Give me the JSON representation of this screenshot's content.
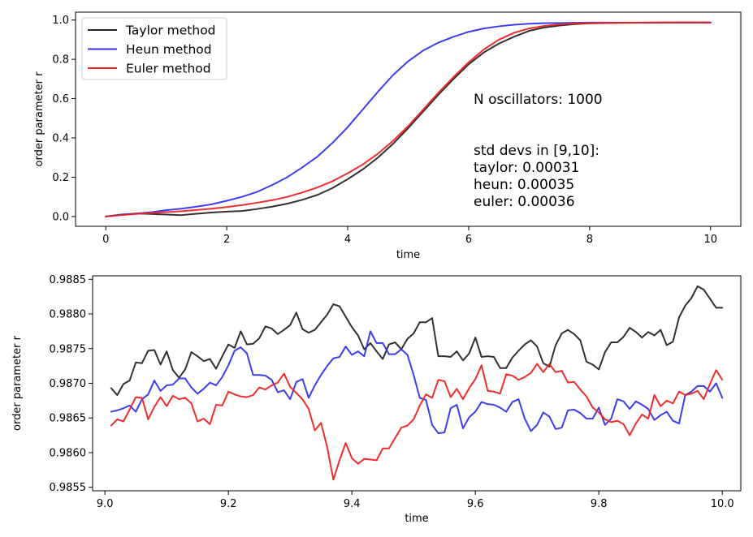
{
  "chart_data": [
    {
      "type": "line",
      "xlabel": "time",
      "ylabel": "order parameter r",
      "xlim": [
        -0.5,
        10.5
      ],
      "ylim": [
        -0.05,
        1.04
      ],
      "xticks": [
        0,
        2,
        4,
        6,
        8,
        10
      ],
      "xtick_labels": [
        "0",
        "2",
        "4",
        "6",
        "8",
        "10"
      ],
      "yticks": [
        0.0,
        0.2,
        0.4,
        0.6,
        0.8,
        1.0
      ],
      "ytick_labels": [
        "0.0",
        "0.2",
        "0.4",
        "0.6",
        "0.8",
        "1.0"
      ],
      "legend": {
        "position": "upper left"
      },
      "annotation": {
        "title": "N oscillators: 1000",
        "std_lines": [
          "std devs in [9,10]:",
          "taylor: 0.00031",
          "heun: 0.00035",
          "euler: 0.00036"
        ]
      },
      "series": [
        {
          "name": "Taylor method",
          "color": "#262626",
          "x": [
            0,
            0.25,
            0.5,
            0.75,
            1.0,
            1.25,
            1.5,
            1.75,
            2.0,
            2.25,
            2.5,
            2.75,
            3.0,
            3.25,
            3.5,
            3.75,
            4.0,
            4.25,
            4.5,
            4.75,
            5.0,
            5.25,
            5.5,
            5.75,
            6.0,
            6.25,
            6.5,
            6.75,
            7.0,
            7.25,
            7.5,
            7.75,
            8.0,
            8.5,
            9.0,
            9.5,
            10.0
          ],
          "y": [
            0.0,
            0.008,
            0.015,
            0.013,
            0.01,
            0.007,
            0.014,
            0.02,
            0.025,
            0.028,
            0.038,
            0.05,
            0.065,
            0.085,
            0.11,
            0.145,
            0.19,
            0.24,
            0.3,
            0.37,
            0.45,
            0.535,
            0.62,
            0.7,
            0.775,
            0.835,
            0.88,
            0.915,
            0.945,
            0.962,
            0.972,
            0.979,
            0.983,
            0.986,
            0.987,
            0.988,
            0.988
          ]
        },
        {
          "name": "Heun method",
          "color": "#3333ee",
          "x": [
            0,
            0.25,
            0.5,
            0.75,
            1.0,
            1.25,
            1.5,
            1.75,
            2.0,
            2.25,
            2.5,
            2.75,
            3.0,
            3.25,
            3.5,
            3.75,
            4.0,
            4.25,
            4.5,
            4.75,
            5.0,
            5.25,
            5.5,
            5.75,
            6.0,
            6.25,
            6.5,
            6.75,
            7.0,
            7.25,
            7.5,
            7.75,
            8.0,
            8.5,
            9.0,
            9.5,
            10.0
          ],
          "y": [
            0.0,
            0.01,
            0.015,
            0.022,
            0.032,
            0.04,
            0.05,
            0.062,
            0.08,
            0.1,
            0.125,
            0.16,
            0.2,
            0.25,
            0.305,
            0.375,
            0.455,
            0.545,
            0.635,
            0.72,
            0.79,
            0.845,
            0.885,
            0.915,
            0.94,
            0.957,
            0.968,
            0.976,
            0.981,
            0.984,
            0.985,
            0.986,
            0.987,
            0.987,
            0.987,
            0.987,
            0.987
          ]
        },
        {
          "name": "Euler method",
          "color": "#ee2222",
          "x": [
            0,
            0.25,
            0.5,
            0.75,
            1.0,
            1.25,
            1.5,
            1.75,
            2.0,
            2.25,
            2.5,
            2.75,
            3.0,
            3.25,
            3.5,
            3.75,
            4.0,
            4.25,
            4.5,
            4.75,
            5.0,
            5.25,
            5.5,
            5.75,
            6.0,
            6.25,
            6.5,
            6.75,
            7.0,
            7.25,
            7.5,
            7.75,
            8.0,
            8.5,
            9.0,
            9.5,
            10.0
          ],
          "y": [
            0.0,
            0.007,
            0.013,
            0.018,
            0.022,
            0.027,
            0.033,
            0.04,
            0.048,
            0.058,
            0.07,
            0.083,
            0.1,
            0.122,
            0.148,
            0.18,
            0.22,
            0.265,
            0.32,
            0.385,
            0.46,
            0.545,
            0.63,
            0.71,
            0.785,
            0.85,
            0.9,
            0.935,
            0.957,
            0.97,
            0.978,
            0.982,
            0.985,
            0.986,
            0.987,
            0.987,
            0.987
          ]
        }
      ]
    },
    {
      "type": "line",
      "xlabel": "time",
      "ylabel": "order parameter r",
      "xlim": [
        8.98,
        10.03
      ],
      "ylim": [
        0.98545,
        0.98855
      ],
      "xticks": [
        9.0,
        9.2,
        9.4,
        9.6,
        9.8,
        10.0
      ],
      "xtick_labels": [
        "9.0",
        "9.2",
        "9.4",
        "9.6",
        "9.8",
        "10.0"
      ],
      "yticks": [
        0.9855,
        0.986,
        0.9865,
        0.987,
        0.9875,
        0.988,
        0.9885
      ],
      "ytick_labels": [
        "0.9855",
        "0.9860",
        "0.9865",
        "0.9870",
        "0.9875",
        "0.9880",
        "0.9885"
      ],
      "series": [
        {
          "name": "Taylor method",
          "color": "#262626",
          "x": [
            9.01,
            9.02,
            9.03,
            9.04,
            9.05,
            9.06,
            9.07,
            9.08,
            9.09,
            9.1,
            9.11,
            9.12,
            9.13,
            9.14,
            9.15,
            9.16,
            9.17,
            9.18,
            9.19,
            9.2,
            9.21,
            9.22,
            9.23,
            9.24,
            9.25,
            9.26,
            9.27,
            9.28,
            9.29,
            9.3,
            9.31,
            9.32,
            9.33,
            9.34,
            9.35,
            9.36,
            9.37,
            9.38,
            9.39,
            9.4,
            9.41,
            9.42,
            9.43,
            9.44,
            9.45,
            9.46,
            9.47,
            9.48,
            9.49,
            9.5,
            9.51,
            9.52,
            9.53,
            9.54,
            9.55,
            9.56,
            9.57,
            9.58,
            9.59,
            9.6,
            9.61,
            9.62,
            9.63,
            9.64,
            9.65,
            9.66,
            9.67,
            9.68,
            9.69,
            9.7,
            9.71,
            9.72,
            9.73,
            9.74,
            9.75,
            9.76,
            9.77,
            9.78,
            9.79,
            9.8,
            9.81,
            9.82,
            9.83,
            9.84,
            9.85,
            9.86,
            9.87,
            9.88,
            9.89,
            9.9,
            9.91,
            9.92,
            9.93,
            9.94,
            9.95,
            9.96,
            9.97,
            9.98,
            9.99,
            10.0
          ],
          "y": [
            0.98693,
            0.98683,
            0.98699,
            0.98704,
            0.9873,
            0.98729,
            0.98747,
            0.98748,
            0.98727,
            0.98746,
            0.98719,
            0.98708,
            0.9872,
            0.98745,
            0.98739,
            0.98732,
            0.98735,
            0.98721,
            0.98739,
            0.98756,
            0.98751,
            0.98775,
            0.98756,
            0.98757,
            0.98765,
            0.98782,
            0.98779,
            0.98771,
            0.98777,
            0.98784,
            0.98802,
            0.98778,
            0.98773,
            0.98777,
            0.98788,
            0.98799,
            0.98814,
            0.98811,
            0.98796,
            0.98781,
            0.98769,
            0.98749,
            0.98758,
            0.98746,
            0.98735,
            0.98756,
            0.98759,
            0.98749,
            0.98764,
            0.98772,
            0.98788,
            0.98788,
            0.98794,
            0.98739,
            0.98739,
            0.98738,
            0.98746,
            0.98733,
            0.98743,
            0.98766,
            0.98738,
            0.98739,
            0.98738,
            0.98722,
            0.98722,
            0.98737,
            0.98747,
            0.98756,
            0.98762,
            0.98753,
            0.98729,
            0.98724,
            0.98755,
            0.98772,
            0.98777,
            0.98771,
            0.98762,
            0.98731,
            0.98727,
            0.9872,
            0.98745,
            0.98759,
            0.98759,
            0.98767,
            0.9878,
            0.98774,
            0.98766,
            0.98774,
            0.98769,
            0.98777,
            0.98755,
            0.9876,
            0.98795,
            0.98812,
            0.98823,
            0.9884,
            0.98835,
            0.98822,
            0.98809,
            0.98809
          ]
        },
        {
          "name": "Heun method",
          "color": "#3333ee",
          "x": [
            9.01,
            9.02,
            9.03,
            9.04,
            9.05,
            9.06,
            9.07,
            9.08,
            9.09,
            9.1,
            9.11,
            9.12,
            9.13,
            9.14,
            9.15,
            9.16,
            9.17,
            9.18,
            9.19,
            9.2,
            9.21,
            9.22,
            9.23,
            9.24,
            9.25,
            9.26,
            9.27,
            9.28,
            9.29,
            9.3,
            9.31,
            9.32,
            9.33,
            9.34,
            9.35,
            9.36,
            9.37,
            9.38,
            9.39,
            9.4,
            9.41,
            9.42,
            9.43,
            9.44,
            9.45,
            9.46,
            9.47,
            9.48,
            9.49,
            9.5,
            9.51,
            9.52,
            9.53,
            9.54,
            9.55,
            9.56,
            9.57,
            9.58,
            9.59,
            9.6,
            9.61,
            9.62,
            9.63,
            9.64,
            9.65,
            9.66,
            9.67,
            9.68,
            9.69,
            9.7,
            9.71,
            9.72,
            9.73,
            9.74,
            9.75,
            9.76,
            9.77,
            9.78,
            9.79,
            9.8,
            9.81,
            9.82,
            9.83,
            9.84,
            9.85,
            9.86,
            9.87,
            9.88,
            9.89,
            9.9,
            9.91,
            9.92,
            9.93,
            9.94,
            9.95,
            9.96,
            9.97,
            9.98,
            9.99,
            10.0
          ],
          "y": [
            0.98659,
            0.98661,
            0.98664,
            0.98668,
            0.98659,
            0.98677,
            0.98684,
            0.98704,
            0.98689,
            0.98697,
            0.98698,
            0.98707,
            0.98707,
            0.98694,
            0.98685,
            0.98692,
            0.98701,
            0.98697,
            0.98709,
            0.98726,
            0.98747,
            0.98752,
            0.98743,
            0.98712,
            0.98712,
            0.98711,
            0.98705,
            0.98687,
            0.9869,
            0.98677,
            0.98702,
            0.98706,
            0.98679,
            0.98697,
            0.98712,
            0.98725,
            0.98736,
            0.98738,
            0.98753,
            0.98741,
            0.98746,
            0.98739,
            0.98775,
            0.98758,
            0.98758,
            0.98742,
            0.98742,
            0.98749,
            0.98741,
            0.98712,
            0.98679,
            0.98676,
            0.9864,
            0.98628,
            0.98629,
            0.98664,
            0.98669,
            0.98635,
            0.98651,
            0.98659,
            0.98673,
            0.9867,
            0.98669,
            0.98665,
            0.98659,
            0.98673,
            0.98677,
            0.98649,
            0.98631,
            0.9864,
            0.98658,
            0.98652,
            0.98634,
            0.98636,
            0.98661,
            0.98662,
            0.98657,
            0.98649,
            0.98649,
            0.98665,
            0.9864,
            0.98649,
            0.98677,
            0.98674,
            0.98663,
            0.98674,
            0.98669,
            0.98663,
            0.98647,
            0.98654,
            0.98659,
            0.98646,
            0.98642,
            0.98683,
            0.98688,
            0.98696,
            0.98696,
            0.98688,
            0.987,
            0.98679
          ]
        },
        {
          "name": "Euler method",
          "color": "#ee2222",
          "x": [
            9.01,
            9.02,
            9.03,
            9.04,
            9.05,
            9.06,
            9.07,
            9.08,
            9.09,
            9.1,
            9.11,
            9.12,
            9.13,
            9.14,
            9.15,
            9.16,
            9.17,
            9.18,
            9.19,
            9.2,
            9.21,
            9.22,
            9.23,
            9.24,
            9.25,
            9.26,
            9.27,
            9.28,
            9.29,
            9.3,
            9.31,
            9.32,
            9.33,
            9.34,
            9.35,
            9.36,
            9.37,
            9.38,
            9.39,
            9.4,
            9.41,
            9.42,
            9.43,
            9.44,
            9.45,
            9.46,
            9.47,
            9.48,
            9.49,
            9.5,
            9.51,
            9.52,
            9.53,
            9.54,
            9.55,
            9.56,
            9.57,
            9.58,
            9.59,
            9.6,
            9.61,
            9.62,
            9.63,
            9.64,
            9.65,
            9.66,
            9.67,
            9.68,
            9.69,
            9.7,
            9.71,
            9.72,
            9.73,
            9.74,
            9.75,
            9.76,
            9.77,
            9.78,
            9.79,
            9.8,
            9.81,
            9.82,
            9.83,
            9.84,
            9.85,
            9.86,
            9.87,
            9.88,
            9.89,
            9.9,
            9.91,
            9.92,
            9.93,
            9.94,
            9.95,
            9.96,
            9.97,
            9.98,
            9.99,
            10.0
          ],
          "y": [
            0.98639,
            0.98648,
            0.98645,
            0.98662,
            0.9868,
            0.98679,
            0.98648,
            0.98666,
            0.9868,
            0.98667,
            0.98682,
            0.98677,
            0.98679,
            0.98671,
            0.98645,
            0.98649,
            0.98641,
            0.98669,
            0.98668,
            0.98688,
            0.98684,
            0.98681,
            0.9868,
            0.98683,
            0.98694,
            0.98691,
            0.98697,
            0.98701,
            0.98714,
            0.98695,
            0.98686,
            0.98677,
            0.98663,
            0.98632,
            0.98643,
            0.98608,
            0.98561,
            0.98589,
            0.98614,
            0.98592,
            0.98584,
            0.98591,
            0.9859,
            0.98589,
            0.98606,
            0.98606,
            0.98621,
            0.98636,
            0.98639,
            0.98648,
            0.98668,
            0.98684,
            0.98679,
            0.98705,
            0.98703,
            0.9868,
            0.98692,
            0.98677,
            0.98693,
            0.98706,
            0.98726,
            0.98689,
            0.98688,
            0.98685,
            0.98713,
            0.98711,
            0.98705,
            0.98709,
            0.98715,
            0.98728,
            0.98716,
            0.98728,
            0.98716,
            0.98718,
            0.98701,
            0.98702,
            0.98691,
            0.98681,
            0.98665,
            0.98658,
            0.98648,
            0.98644,
            0.98646,
            0.98641,
            0.98625,
            0.98642,
            0.98655,
            0.98649,
            0.98683,
            0.98667,
            0.98675,
            0.98671,
            0.98688,
            0.98683,
            0.98685,
            0.98689,
            0.98677,
            0.98699,
            0.98719,
            0.98705
          ]
        }
      ]
    }
  ]
}
